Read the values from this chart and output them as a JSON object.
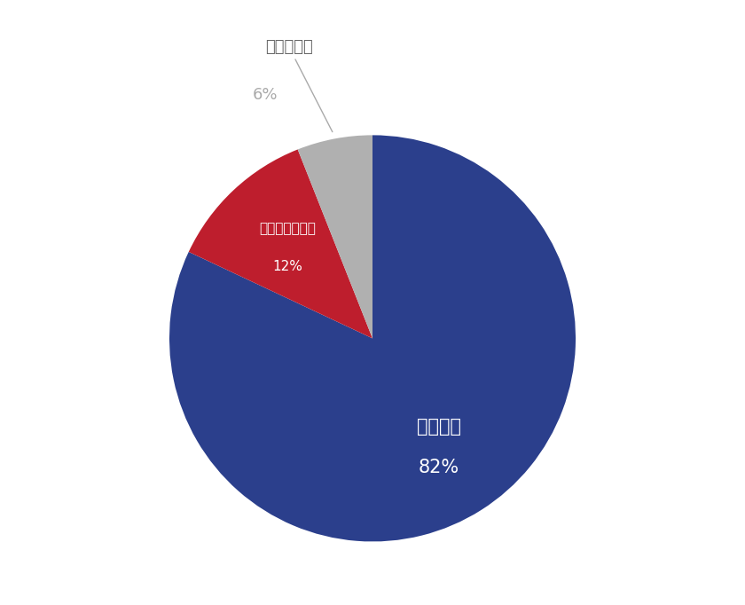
{
  "labels": [
    "支給予定",
    "支給しない予定",
    "わからない"
  ],
  "values": [
    82,
    12,
    6
  ],
  "colors": [
    "#2b3f8c",
    "#be1e2d",
    "#b0b0b0"
  ],
  "bg_color": "#ffffff",
  "startangle": 90,
  "figsize": [
    8.4,
    6.82
  ],
  "dpi": 100,
  "label0_text": "支給予定",
  "label0_pct": "82%",
  "label1_text": "支給しない予定",
  "label1_pct": "12%",
  "label2_text": "わからない",
  "label2_pct": "6%"
}
